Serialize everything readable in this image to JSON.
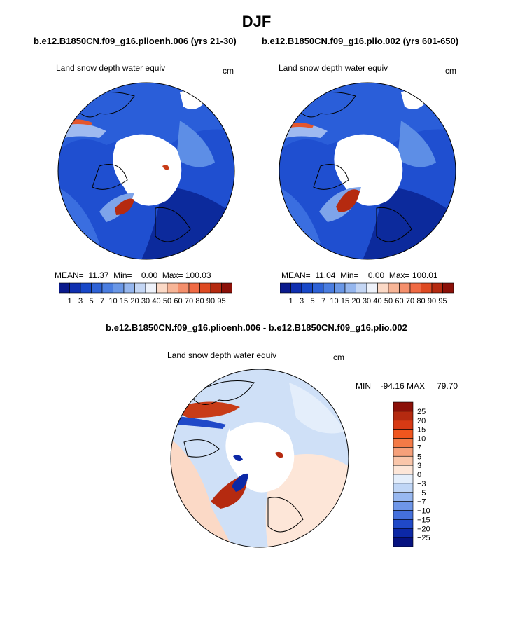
{
  "figure": {
    "title": "DJF",
    "left_subtitle": "b.e12.B1850CN.f09_g16.plioenh.006 (yrs 21-30)",
    "right_subtitle": "b.e12.B1850CN.f09_g16.plio.002 (yrs 601-650)",
    "diff_subtitle": "b.e12.B1850CN.f09_g16.plioenh.006 - b.e12.B1850CN.f09_g16.plio.002"
  },
  "chart_data": [
    {
      "type": "heatmap",
      "projection": "north-polar-stereographic",
      "variable_label": "Land snow depth water equiv",
      "units": "cm",
      "stats": {
        "mean": "11.37",
        "min": "0.00",
        "max": "100.03"
      },
      "stats_text": "MEAN=  11.37  Min=    0.00  Max= 100.03",
      "colorbar": {
        "orientation": "horizontal",
        "ticks": [
          "1",
          "3",
          "5",
          "7",
          "10",
          "15",
          "20",
          "30",
          "40",
          "50",
          "60",
          "70",
          "80",
          "90",
          "95"
        ],
        "colors": [
          "#0a1a8c",
          "#0f2fb0",
          "#1848c8",
          "#2e62d6",
          "#4a7de0",
          "#6a97e6",
          "#95b6ee",
          "#c4d6f4",
          "#eef2fa",
          "#fbd9c6",
          "#f7b597",
          "#f48f6c",
          "#ef6a44",
          "#de4a22",
          "#b52a10",
          "#8b1008"
        ]
      }
    },
    {
      "type": "heatmap",
      "projection": "north-polar-stereographic",
      "variable_label": "Land snow depth water equiv",
      "units": "cm",
      "stats": {
        "mean": "11.04",
        "min": "0.00",
        "max": "100.01"
      },
      "stats_text": "MEAN=  11.04  Min=    0.00  Max= 100.01",
      "colorbar": {
        "orientation": "horizontal",
        "ticks": [
          "1",
          "3",
          "5",
          "7",
          "10",
          "15",
          "20",
          "30",
          "40",
          "50",
          "60",
          "70",
          "80",
          "90",
          "95"
        ],
        "colors": [
          "#0a1a8c",
          "#0f2fb0",
          "#1848c8",
          "#2e62d6",
          "#4a7de0",
          "#6a97e6",
          "#95b6ee",
          "#c4d6f4",
          "#eef2fa",
          "#fbd9c6",
          "#f7b597",
          "#f48f6c",
          "#ef6a44",
          "#de4a22",
          "#b52a10",
          "#8b1008"
        ]
      }
    },
    {
      "type": "heatmap",
      "projection": "north-polar-stereographic",
      "variable_label": "Land snow depth water equiv",
      "units": "cm",
      "stats": {
        "min": "-94.16",
        "max": "79.70"
      },
      "stats_text": "MIN = -94.16 MAX =  79.70",
      "colorbar": {
        "orientation": "vertical",
        "ticks": [
          "25",
          "20",
          "15",
          "10",
          "7",
          "5",
          "3",
          "0",
          "−3",
          "−5",
          "−7",
          "−10",
          "−15",
          "−20",
          "−25"
        ],
        "colors": [
          "#8b1008",
          "#b52a10",
          "#d83a14",
          "#f0561e",
          "#f47a46",
          "#f6a07a",
          "#fac6aa",
          "#fde6d8",
          "#e4eefb",
          "#c0d6f6",
          "#98b8f0",
          "#6e96e8",
          "#4470dc",
          "#2049c8",
          "#0c28a6",
          "#061280"
        ]
      }
    }
  ]
}
